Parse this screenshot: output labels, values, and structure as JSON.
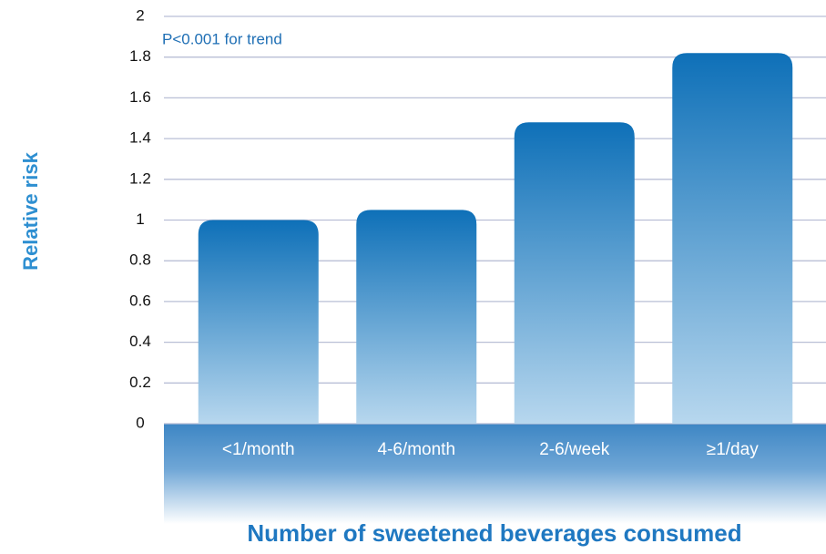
{
  "chart_data": {
    "type": "bar",
    "annotation": "P<0.001 for trend",
    "y_label": "Relative risk",
    "x_label": "Number of sweetened beverages consumed",
    "categories": [
      "<1/month",
      "4-6/month",
      "2-6/week",
      "≥1/day"
    ],
    "values": [
      1.0,
      1.05,
      1.48,
      1.82
    ],
    "color": "#0e70b8",
    "ylim": [
      0,
      2
    ],
    "yticks": [
      0,
      0.2,
      0.4,
      0.6,
      0.8,
      1,
      1.2,
      1.4,
      1.6,
      1.8,
      2
    ],
    "grid": true
  }
}
